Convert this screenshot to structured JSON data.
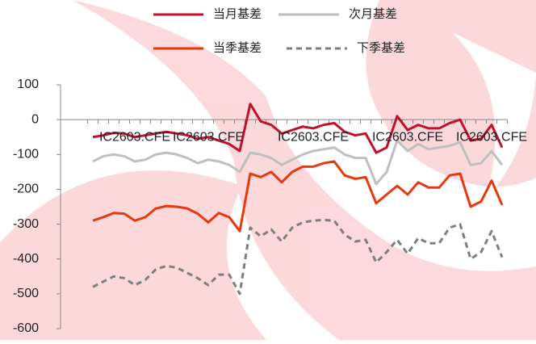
{
  "chart_data": {
    "type": "line",
    "categories": [
      null,
      null,
      null,
      null,
      "IC2603.CFE",
      null,
      null,
      null,
      null,
      null,
      null,
      "IC2603.CFE",
      null,
      null,
      null,
      null,
      null,
      null,
      null,
      null,
      null,
      "IC2603.CFE",
      null,
      null,
      null,
      null,
      null,
      null,
      null,
      null,
      "IC2603.CFE",
      null,
      null,
      null,
      null,
      null,
      null,
      null,
      "IC2603.CFE",
      null
    ],
    "series": [
      {
        "name": "当月基差",
        "color": "#c0102c",
        "dash": false,
        "values": [
          -50,
          -45,
          -38,
          -40,
          -50,
          -45,
          -40,
          -35,
          -40,
          -45,
          -55,
          -50,
          -60,
          -70,
          -90,
          45,
          -5,
          -15,
          -40,
          -30,
          -20,
          -25,
          -15,
          -10,
          -35,
          -45,
          -40,
          -95,
          -80,
          10,
          -30,
          -15,
          -25,
          -25,
          -10,
          0,
          -60,
          -55,
          -15,
          -80
        ]
      },
      {
        "name": "次月基差",
        "color": "#bfbfbf",
        "dash": false,
        "values": [
          -120,
          -105,
          -100,
          -105,
          -120,
          -115,
          -100,
          -95,
          -100,
          -110,
          -125,
          -115,
          -120,
          -130,
          -150,
          -95,
          -100,
          -110,
          -130,
          -115,
          -100,
          -90,
          -85,
          -80,
          -100,
          -110,
          -110,
          -185,
          -150,
          -60,
          -90,
          -70,
          -85,
          -80,
          -75,
          -65,
          -130,
          -125,
          -90,
          -130
        ]
      },
      {
        "name": "当季基差",
        "color": "#e8380d",
        "dash": false,
        "values": [
          -290,
          -280,
          -268,
          -270,
          -290,
          -280,
          -255,
          -248,
          -250,
          -255,
          -270,
          -295,
          -268,
          -280,
          -320,
          -155,
          -165,
          -150,
          -180,
          -150,
          -135,
          -135,
          -125,
          -120,
          -160,
          -170,
          -165,
          -240,
          -215,
          -190,
          -215,
          -180,
          -195,
          -195,
          -160,
          -155,
          -250,
          -235,
          -175,
          -245
        ]
      },
      {
        "name": "下季基差",
        "color": "#7f7f7f",
        "dash": true,
        "values": [
          -480,
          -465,
          -450,
          -455,
          -475,
          -460,
          -430,
          -420,
          -425,
          -440,
          -455,
          -475,
          -445,
          -445,
          -500,
          -310,
          -335,
          -315,
          -350,
          -310,
          -295,
          -290,
          -288,
          -290,
          -330,
          -350,
          -345,
          -410,
          -380,
          -345,
          -385,
          -340,
          -355,
          -355,
          -310,
          -300,
          -400,
          -380,
          -320,
          -395
        ]
      }
    ],
    "ylim": [
      -600,
      100
    ],
    "yticks": [
      -600,
      -500,
      -400,
      -300,
      -200,
      -100,
      0,
      100
    ]
  }
}
